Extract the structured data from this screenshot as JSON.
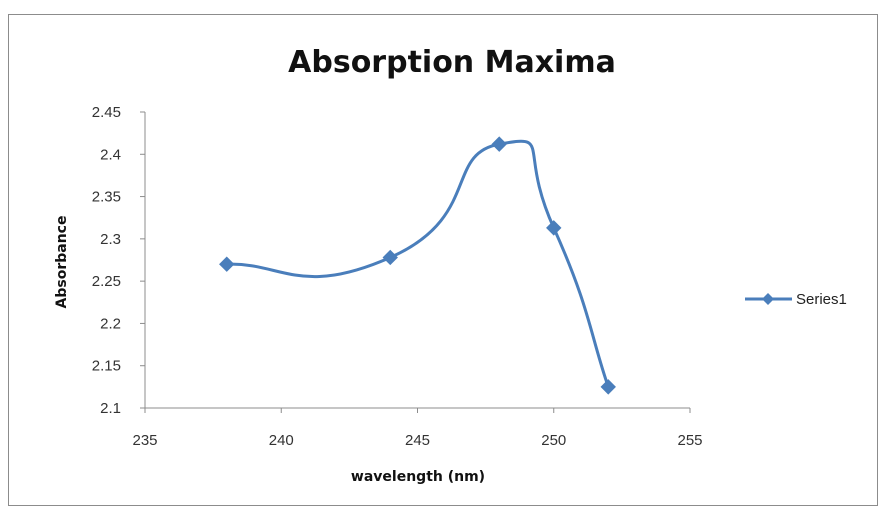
{
  "chart_data": {
    "type": "line",
    "title": "Absorption Maxima",
    "xlabel": "wavelength (nm)",
    "ylabel": "Absorbance",
    "xlim": [
      235,
      255
    ],
    "ylim": [
      2.1,
      2.45
    ],
    "x_ticks": [
      "235",
      "240",
      "245",
      "250",
      "255"
    ],
    "y_ticks": [
      "2.1",
      "2.15",
      "2.2",
      "2.25",
      "2.3",
      "2.35",
      "2.4",
      "2.45"
    ],
    "grid": false,
    "legend_position": "right",
    "smooth": true,
    "series": [
      {
        "name": "Series1",
        "color": "#4a7ebb",
        "marker": "diamond",
        "x": [
          238,
          244,
          248,
          250,
          252
        ],
        "y": [
          2.27,
          2.278,
          2.412,
          2.313,
          2.125
        ]
      }
    ]
  }
}
